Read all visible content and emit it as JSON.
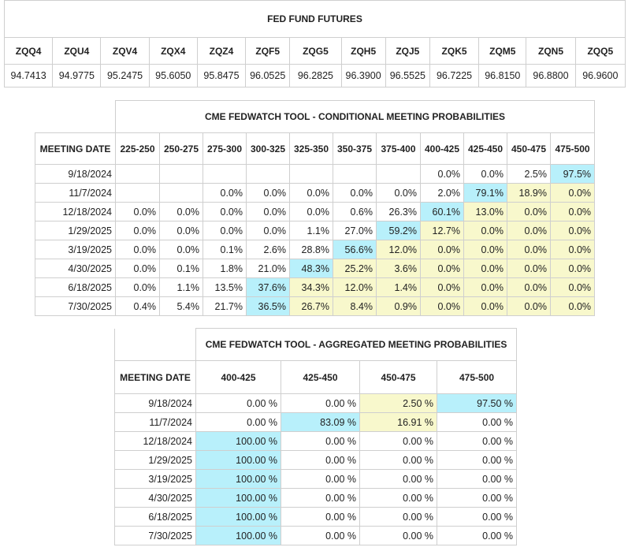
{
  "futures": {
    "title": "FED FUND FUTURES",
    "headers": [
      "ZQQ4",
      "ZQU4",
      "ZQV4",
      "ZQX4",
      "ZQZ4",
      "ZQF5",
      "ZQG5",
      "ZQH5",
      "ZQJ5",
      "ZQK5",
      "ZQM5",
      "ZQN5",
      "ZQQ5"
    ],
    "values": [
      "94.7413",
      "94.9775",
      "95.2475",
      "95.6050",
      "95.8475",
      "96.0525",
      "96.2825",
      "96.3900",
      "96.5525",
      "96.7225",
      "96.8150",
      "96.8800",
      "96.9600"
    ]
  },
  "conditional": {
    "title": "CME FEDWATCH TOOL - CONDITIONAL MEETING PROBABILITIES",
    "date_header": "MEETING DATE",
    "headers": [
      "225-250",
      "250-275",
      "275-300",
      "300-325",
      "325-350",
      "350-375",
      "375-400",
      "400-425",
      "425-450",
      "450-475",
      "475-500"
    ],
    "rows": [
      {
        "date": "9/18/2024",
        "values": [
          "",
          "",
          "",
          "",
          "",
          "",
          "",
          "0.0%",
          "0.0%",
          "2.5%",
          "97.5%"
        ],
        "colors": [
          "",
          "",
          "",
          "",
          "",
          "",
          "",
          "",
          "",
          "",
          "b"
        ]
      },
      {
        "date": "11/7/2024",
        "values": [
          "",
          "",
          "0.0%",
          "0.0%",
          "0.0%",
          "0.0%",
          "0.0%",
          "2.0%",
          "79.1%",
          "18.9%",
          "0.0%"
        ],
        "colors": [
          "",
          "",
          "",
          "",
          "",
          "",
          "",
          "",
          "b",
          "y",
          "y"
        ]
      },
      {
        "date": "12/18/2024",
        "values": [
          "0.0%",
          "0.0%",
          "0.0%",
          "0.0%",
          "0.0%",
          "0.6%",
          "26.3%",
          "60.1%",
          "13.0%",
          "0.0%",
          "0.0%"
        ],
        "colors": [
          "",
          "",
          "",
          "",
          "",
          "",
          "",
          "b",
          "y",
          "y",
          "y"
        ]
      },
      {
        "date": "1/29/2025",
        "values": [
          "0.0%",
          "0.0%",
          "0.0%",
          "0.0%",
          "1.1%",
          "27.0%",
          "59.2%",
          "12.7%",
          "0.0%",
          "0.0%",
          "0.0%"
        ],
        "colors": [
          "",
          "",
          "",
          "",
          "",
          "",
          "b",
          "y",
          "y",
          "y",
          "y"
        ]
      },
      {
        "date": "3/19/2025",
        "values": [
          "0.0%",
          "0.0%",
          "0.1%",
          "2.6%",
          "28.8%",
          "56.6%",
          "12.0%",
          "0.0%",
          "0.0%",
          "0.0%",
          "0.0%"
        ],
        "colors": [
          "",
          "",
          "",
          "",
          "",
          "b",
          "y",
          "y",
          "y",
          "y",
          "y"
        ]
      },
      {
        "date": "4/30/2025",
        "values": [
          "0.0%",
          "0.1%",
          "1.8%",
          "21.0%",
          "48.3%",
          "25.2%",
          "3.6%",
          "0.0%",
          "0.0%",
          "0.0%",
          "0.0%"
        ],
        "colors": [
          "",
          "",
          "",
          "",
          "b",
          "y",
          "y",
          "y",
          "y",
          "y",
          "y"
        ]
      },
      {
        "date": "6/18/2025",
        "values": [
          "0.0%",
          "1.1%",
          "13.5%",
          "37.6%",
          "34.3%",
          "12.0%",
          "1.4%",
          "0.0%",
          "0.0%",
          "0.0%",
          "0.0%"
        ],
        "colors": [
          "",
          "",
          "",
          "b",
          "y",
          "y",
          "y",
          "y",
          "y",
          "y",
          "y"
        ]
      },
      {
        "date": "7/30/2025",
        "values": [
          "0.4%",
          "5.4%",
          "21.7%",
          "36.5%",
          "26.7%",
          "8.4%",
          "0.9%",
          "0.0%",
          "0.0%",
          "0.0%",
          "0.0%"
        ],
        "colors": [
          "",
          "",
          "",
          "b",
          "y",
          "y",
          "y",
          "y",
          "y",
          "y",
          "y"
        ]
      }
    ]
  },
  "aggregated": {
    "title": "CME FEDWATCH TOOL - AGGREGATED MEETING PROBABILITIES",
    "date_header": "MEETING DATE",
    "headers": [
      "400-425",
      "425-450",
      "450-475",
      "475-500"
    ],
    "rows": [
      {
        "date": "9/18/2024",
        "values": [
          "0.00 %",
          "0.00 %",
          "2.50 %",
          "97.50 %"
        ],
        "colors": [
          "",
          "",
          "y",
          "b"
        ]
      },
      {
        "date": "11/7/2024",
        "values": [
          "0.00 %",
          "83.09 %",
          "16.91 %",
          "0.00 %"
        ],
        "colors": [
          "",
          "b",
          "y",
          ""
        ]
      },
      {
        "date": "12/18/2024",
        "values": [
          "100.00 %",
          "0.00 %",
          "0.00 %",
          "0.00 %"
        ],
        "colors": [
          "b",
          "",
          "",
          ""
        ]
      },
      {
        "date": "1/29/2025",
        "values": [
          "100.00 %",
          "0.00 %",
          "0.00 %",
          "0.00 %"
        ],
        "colors": [
          "b",
          "",
          "",
          ""
        ]
      },
      {
        "date": "3/19/2025",
        "values": [
          "100.00 %",
          "0.00 %",
          "0.00 %",
          "0.00 %"
        ],
        "colors": [
          "b",
          "",
          "",
          ""
        ]
      },
      {
        "date": "4/30/2025",
        "values": [
          "100.00 %",
          "0.00 %",
          "0.00 %",
          "0.00 %"
        ],
        "colors": [
          "b",
          "",
          "",
          ""
        ]
      },
      {
        "date": "6/18/2025",
        "values": [
          "100.00 %",
          "0.00 %",
          "0.00 %",
          "0.00 %"
        ],
        "colors": [
          "b",
          "",
          "",
          ""
        ]
      },
      {
        "date": "7/30/2025",
        "values": [
          "100.00 %",
          "0.00 %",
          "0.00 %",
          "0.00 %"
        ],
        "colors": [
          "b",
          "",
          "",
          ""
        ]
      }
    ]
  },
  "colors": {
    "blue": "#b8f0fb",
    "yellow": "#f8f8cc",
    "border": "#cfcfcf"
  }
}
